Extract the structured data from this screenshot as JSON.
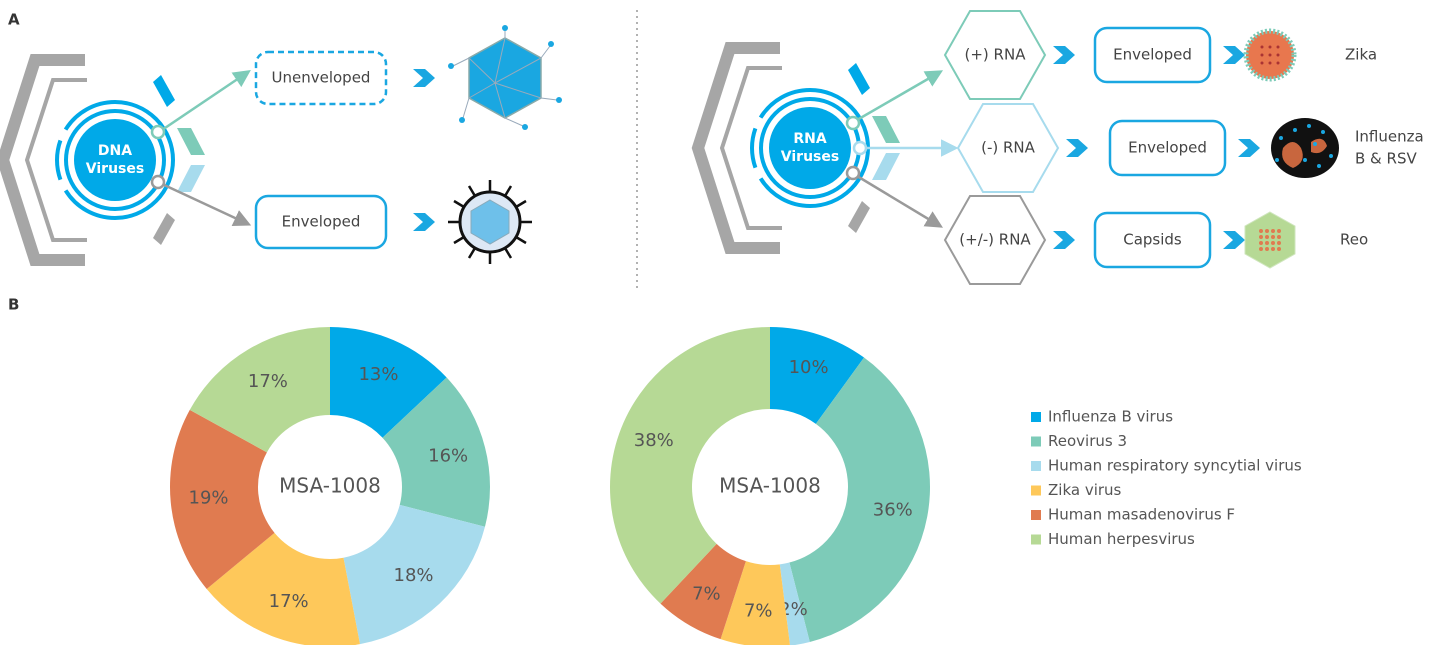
{
  "panels": {
    "a": "A",
    "b": "B"
  },
  "diagram": {
    "dna": {
      "label_lines": [
        "DNA",
        "Viruses"
      ],
      "unenveloped": "Unenveloped",
      "enveloped": "Enveloped"
    },
    "rna": {
      "label_lines": [
        "RNA",
        "Viruses"
      ],
      "rows": [
        {
          "type": "(+) RNA",
          "structure": "Enveloped",
          "examples": [
            "Zika"
          ]
        },
        {
          "type": "(-) RNA",
          "structure": "Enveloped",
          "examples": [
            "Influenza",
            "B & RSV"
          ]
        },
        {
          "type": "(+/-) RNA",
          "structure": "Capsids",
          "examples": [
            "Reo"
          ]
        }
      ]
    }
  },
  "legend": {
    "names": [
      "Influenza B virus",
      "Reovirus 3",
      "Human respiratory syncytial virus",
      "Zika virus",
      "Human masadenovirus F",
      "Human herpesvirus"
    ],
    "colors": [
      "#00a9e8",
      "#7dcbb8",
      "#a7dbed",
      "#fec85a",
      "#e07b50",
      "#b6d995"
    ]
  },
  "chart_data": [
    {
      "type": "pie",
      "title": "MSA-1008",
      "values": [
        13,
        16,
        18,
        17,
        19,
        17
      ],
      "value_labels": [
        "13%",
        "16%",
        "18%",
        "17%",
        "19%",
        "17%"
      ]
    },
    {
      "type": "pie",
      "title": "MSA-1008",
      "values": [
        10,
        36,
        2,
        7,
        7,
        38
      ],
      "value_labels": [
        "10%",
        "36%",
        "2%",
        "7%",
        "7%",
        "38%"
      ]
    }
  ]
}
